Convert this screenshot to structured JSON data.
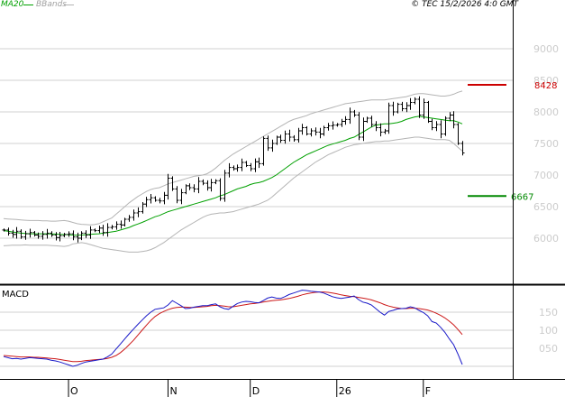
{
  "header": {
    "ma_label": "MA20",
    "bbands_label": "BBands",
    "copyright": "© TEC 15/2/2026 4:0 GMT"
  },
  "colors": {
    "background": "#ffffff",
    "grid": "#d0d0d0",
    "candle": "#000000",
    "ma": "#00a000",
    "bbands": "#b4b4b4",
    "resistance": "#cc0000",
    "support": "#008800",
    "macd": "#1818c8",
    "signal": "#cc1818",
    "axis": "#000000"
  },
  "chart_data": [
    {
      "type": "candlestick",
      "title": "",
      "price_axis": {
        "ylim": [
          5300,
          9600
        ],
        "ticks": [
          {
            "v": 9000,
            "label": "9000"
          },
          {
            "v": 8500,
            "label": "8500"
          },
          {
            "v": 8000,
            "label": "8000"
          },
          {
            "v": 7500,
            "label": "7500"
          },
          {
            "v": 7000,
            "label": "7000"
          },
          {
            "v": 6500,
            "label": "6500"
          },
          {
            "v": 6000,
            "label": "6000"
          }
        ]
      },
      "x_labels": [
        {
          "i": 15,
          "label": "O"
        },
        {
          "i": 38,
          "label": "N"
        },
        {
          "i": 57,
          "label": "D"
        },
        {
          "i": 77,
          "label": "26"
        },
        {
          "i": 97,
          "label": "F"
        }
      ],
      "levels": [
        {
          "name": "resistance",
          "value": 8428,
          "label": "8428",
          "color": "#cc0000"
        },
        {
          "name": "support",
          "value": 6667,
          "label": "6667",
          "color": "#008800"
        }
      ],
      "closes": [
        6130,
        6080,
        6060,
        6110,
        6020,
        6070,
        6090,
        6050,
        6030,
        6060,
        6080,
        6050,
        6010,
        6040,
        6060,
        6070,
        6020,
        6000,
        6080,
        6050,
        6130,
        6120,
        6160,
        6090,
        6170,
        6180,
        6220,
        6210,
        6300,
        6330,
        6400,
        6420,
        6540,
        6610,
        6640,
        6600,
        6590,
        6680,
        6950,
        6780,
        6600,
        6720,
        6830,
        6800,
        6780,
        6900,
        6870,
        6800,
        6880,
        6910,
        6630,
        7030,
        7120,
        7100,
        7120,
        7200,
        7150,
        7100,
        7210,
        7180,
        7580,
        7430,
        7500,
        7600,
        7550,
        7650,
        7600,
        7560,
        7700,
        7750,
        7650,
        7700,
        7680,
        7650,
        7750,
        7780,
        7790,
        7800,
        7850,
        7880,
        8000,
        7950,
        7600,
        7850,
        7900,
        7800,
        7750,
        7680,
        7700,
        8100,
        8000,
        8120,
        8050,
        8100,
        8150,
        8200,
        7950,
        8150,
        7850,
        7750,
        7800,
        7650,
        7900,
        7950,
        7800,
        7500,
        7350
      ],
      "ma20": [
        6120,
        6110,
        6100,
        6090,
        6080,
        6075,
        6070,
        6070,
        6070,
        6070,
        6070,
        6068,
        6065,
        6060,
        6058,
        6055,
        6050,
        6048,
        6050,
        6055,
        6060,
        6065,
        6070,
        6080,
        6090,
        6100,
        6110,
        6130,
        6150,
        6170,
        6200,
        6225,
        6250,
        6280,
        6310,
        6340,
        6360,
        6390,
        6420,
        6440,
        6460,
        6480,
        6500,
        6520,
        6540,
        6560,
        6580,
        6600,
        6620,
        6640,
        6670,
        6690,
        6720,
        6750,
        6780,
        6800,
        6820,
        6850,
        6870,
        6880,
        6900,
        6930,
        6960,
        7000,
        7050,
        7100,
        7150,
        7200,
        7240,
        7280,
        7320,
        7350,
        7380,
        7410,
        7440,
        7470,
        7490,
        7510,
        7530,
        7550,
        7580,
        7600,
        7640,
        7680,
        7720,
        7760,
        7790,
        7800,
        7810,
        7810,
        7820,
        7830,
        7850,
        7880,
        7900,
        7920,
        7930,
        7920,
        7910,
        7900,
        7890,
        7880,
        7870,
        7860,
        7860,
        7840,
        7810
      ],
      "bb_upper": [
        6310,
        6305,
        6300,
        6295,
        6290,
        6285,
        6280,
        6280,
        6280,
        6275,
        6275,
        6270,
        6270,
        6275,
        6280,
        6270,
        6250,
        6230,
        6220,
        6215,
        6210,
        6215,
        6230,
        6260,
        6290,
        6320,
        6380,
        6440,
        6500,
        6560,
        6610,
        6660,
        6700,
        6740,
        6770,
        6790,
        6800,
        6830,
        6860,
        6880,
        6900,
        6920,
        6940,
        6960,
        6980,
        6990,
        7000,
        7020,
        7060,
        7110,
        7170,
        7230,
        7280,
        7330,
        7370,
        7410,
        7450,
        7490,
        7530,
        7570,
        7610,
        7650,
        7690,
        7730,
        7770,
        7810,
        7850,
        7880,
        7900,
        7920,
        7940,
        7970,
        7990,
        8010,
        8030,
        8050,
        8070,
        8090,
        8110,
        8130,
        8140,
        8150,
        8160,
        8170,
        8180,
        8190,
        8190,
        8190,
        8190,
        8200,
        8210,
        8220,
        8230,
        8240,
        8260,
        8280,
        8290,
        8290,
        8280,
        8270,
        8260,
        8250,
        8250,
        8260,
        8280,
        8310,
        8330
      ],
      "bb_lower": [
        5880,
        5885,
        5890,
        5890,
        5890,
        5895,
        5890,
        5890,
        5890,
        5890,
        5890,
        5885,
        5880,
        5875,
        5870,
        5880,
        5910,
        5920,
        5930,
        5920,
        5900,
        5880,
        5860,
        5840,
        5830,
        5820,
        5810,
        5800,
        5790,
        5780,
        5780,
        5780,
        5790,
        5800,
        5820,
        5850,
        5890,
        5930,
        5980,
        6030,
        6080,
        6130,
        6170,
        6210,
        6250,
        6290,
        6330,
        6360,
        6380,
        6390,
        6400,
        6400,
        6410,
        6420,
        6440,
        6460,
        6480,
        6500,
        6520,
        6540,
        6570,
        6600,
        6650,
        6710,
        6770,
        6830,
        6890,
        6950,
        7000,
        7050,
        7100,
        7150,
        7200,
        7240,
        7280,
        7320,
        7350,
        7380,
        7410,
        7440,
        7460,
        7480,
        7490,
        7500,
        7510,
        7520,
        7530,
        7530,
        7540,
        7540,
        7550,
        7560,
        7570,
        7580,
        7590,
        7600,
        7600,
        7590,
        7580,
        7570,
        7560,
        7560,
        7560,
        7550,
        7500,
        7440,
        7380
      ]
    },
    {
      "type": "line",
      "title": "MACD",
      "ylim": [
        -30,
        220
      ],
      "ticks": [
        {
          "v": 150,
          "label": "150"
        },
        {
          "v": 100,
          "label": "100"
        },
        {
          "v": 50,
          "label": "050"
        }
      ],
      "series": [
        {
          "name": "MACD",
          "color": "#1818c8",
          "values": [
            27,
            24,
            21,
            22,
            20,
            22,
            24,
            23,
            22,
            21,
            20,
            17,
            15,
            12,
            8,
            4,
            0,
            3,
            8,
            12,
            14,
            16,
            18,
            20,
            26,
            34,
            48,
            62,
            76,
            90,
            103,
            116,
            128,
            140,
            150,
            158,
            160,
            162,
            170,
            182,
            175,
            168,
            160,
            161,
            164,
            166,
            168,
            168,
            171,
            173,
            165,
            160,
            158,
            166,
            174,
            178,
            180,
            179,
            177,
            176,
            182,
            189,
            192,
            189,
            188,
            193,
            199,
            203,
            207,
            211,
            210,
            208,
            207,
            206,
            203,
            198,
            193,
            190,
            188,
            190,
            192,
            195,
            185,
            178,
            175,
            170,
            160,
            150,
            142,
            152,
            155,
            159,
            160,
            161,
            165,
            162,
            155,
            149,
            140,
            124,
            120,
            108,
            94,
            76,
            60,
            34,
            5
          ]
        },
        {
          "name": "Signal",
          "color": "#cc1818",
          "values": [
            30,
            29,
            28,
            27,
            26,
            26,
            26,
            25,
            25,
            24,
            23,
            22,
            21,
            19,
            17,
            15,
            13,
            13,
            14,
            16,
            17,
            18,
            19,
            20,
            22,
            25,
            30,
            38,
            48,
            60,
            72,
            86,
            100,
            114,
            127,
            138,
            146,
            152,
            157,
            161,
            163,
            164,
            164,
            163,
            163,
            164,
            165,
            166,
            168,
            169,
            168,
            167,
            165,
            165,
            167,
            169,
            171,
            173,
            174,
            176,
            178,
            180,
            182,
            183,
            184,
            186,
            188,
            191,
            194,
            198,
            201,
            203,
            205,
            206,
            206,
            205,
            203,
            201,
            198,
            196,
            194,
            193,
            191,
            189,
            187,
            184,
            180,
            176,
            171,
            167,
            164,
            162,
            160,
            160,
            161,
            161,
            160,
            158,
            156,
            152,
            147,
            141,
            134,
            125,
            115,
            102,
            88
          ]
        }
      ]
    }
  ]
}
